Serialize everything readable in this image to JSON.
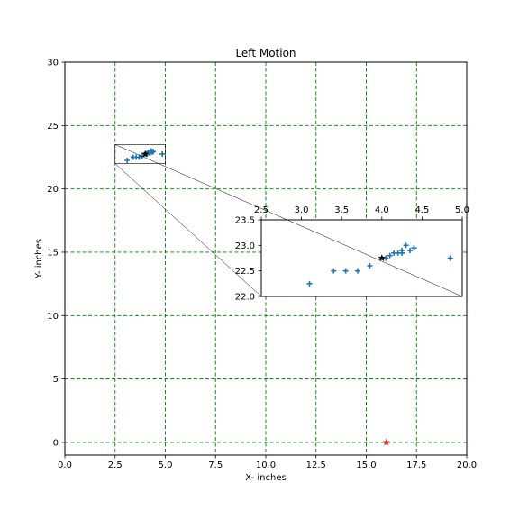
{
  "chart_data": {
    "type": "scatter",
    "title": "Left Motion",
    "xlabel": "X- inches",
    "ylabel": "Y- inches",
    "xlim": [
      0,
      20
    ],
    "ylim": [
      -1,
      30
    ],
    "xticks": [
      0.0,
      2.5,
      5.0,
      7.5,
      10.0,
      12.5,
      15.0,
      17.5,
      20.0
    ],
    "xtick_labels": [
      "0.0",
      "2.5",
      "5.0",
      "7.5",
      "10.0",
      "12.5",
      "15.0",
      "17.5",
      "20.0"
    ],
    "yticks": [
      0,
      5,
      10,
      15,
      20,
      25,
      30
    ],
    "ytick_labels": [
      "0",
      "5",
      "10",
      "15",
      "20",
      "25",
      "30"
    ],
    "grid": true,
    "grid_color": "#008000",
    "series": [
      {
        "marker": "plus",
        "color": "#1f77b4",
        "points": [
          [
            3.1,
            22.25
          ],
          [
            3.4,
            22.5
          ],
          [
            3.55,
            22.5
          ],
          [
            3.7,
            22.5
          ],
          [
            3.85,
            22.6
          ],
          [
            4.05,
            22.75
          ],
          [
            4.1,
            22.8
          ],
          [
            4.15,
            22.85
          ],
          [
            4.2,
            22.85
          ],
          [
            4.25,
            22.85
          ],
          [
            4.25,
            22.9
          ],
          [
            4.3,
            23.0
          ],
          [
            4.35,
            22.9
          ],
          [
            4.4,
            22.95
          ],
          [
            4.85,
            22.75
          ]
        ]
      },
      {
        "marker": "star",
        "color": "#000000",
        "points": [
          [
            4.0,
            22.75
          ]
        ]
      },
      {
        "marker": "star",
        "color": "#d62728",
        "points": [
          [
            16.0,
            0.0
          ]
        ]
      }
    ],
    "inset": {
      "xlim": [
        2.5,
        5.0
      ],
      "ylim": [
        22.0,
        23.5
      ],
      "xticks": [
        2.5,
        3.0,
        3.5,
        4.0,
        4.5,
        5.0
      ],
      "xtick_labels": [
        "2.5",
        "3.0",
        "3.5",
        "4.0",
        "4.5",
        "5.0"
      ],
      "yticks": [
        22.0,
        22.5,
        23.0,
        23.5
      ],
      "ytick_labels": [
        "22.0",
        "22.5",
        "23.0",
        "23.5"
      ],
      "xaxis_position": "top",
      "grid": false
    }
  }
}
